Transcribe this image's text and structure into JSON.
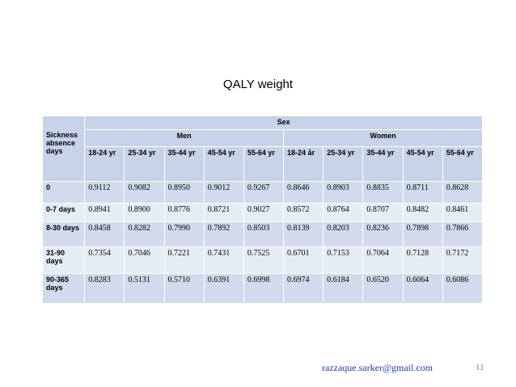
{
  "title": "QALY weight",
  "table": {
    "corner": "Sickness absence days",
    "group": "Sex",
    "subgroups": [
      "Men",
      "Women"
    ],
    "columns": [
      "18-24 yr",
      "25-34 yr",
      "35-44 yr",
      "45-54 yr",
      "55-64 yr",
      "18-24 år",
      "25-34 yr",
      "35-44 yr",
      "45-54 yr",
      "55-64 yr"
    ],
    "rows": [
      {
        "label": "0",
        "values": [
          "0.9112",
          "0.9082",
          "0.8950",
          "0.9012",
          "0.9267",
          "0.8646",
          "0.8903",
          "0.8835",
          "0.8711",
          "0.8628"
        ]
      },
      {
        "label": "0-7 days",
        "values": [
          "0.8941",
          "0.8900",
          "0.8776",
          "0.8721",
          "0.9027",
          "0.8572",
          "0.8764",
          "0.8707",
          "0.8482",
          "0.8461"
        ]
      },
      {
        "label": "8-30 days",
        "values": [
          "0.8458",
          "0.8282",
          "0.7990",
          "0.7892",
          "0.8503",
          "0.8139",
          "0.8203",
          "0.8236",
          "0.7898",
          "0.7866"
        ]
      },
      {
        "label": "31-90 days",
        "values": [
          "0.7354",
          "0.7046",
          "0.7221",
          "0.7431",
          "0.7525",
          "0.6701",
          "0.7153",
          "0.7064",
          "0.7128",
          "0.7172"
        ]
      },
      {
        "label": "90-365 days",
        "values": [
          "0.8283",
          "0.5131",
          "0.5710",
          "0.6391",
          "0.6998",
          "0.6974",
          "0.6184",
          "0.6520",
          "0.6064",
          "0.6086"
        ]
      }
    ]
  },
  "footer": {
    "email": "razzaque.sarker@gmail.com",
    "page": "11"
  }
}
